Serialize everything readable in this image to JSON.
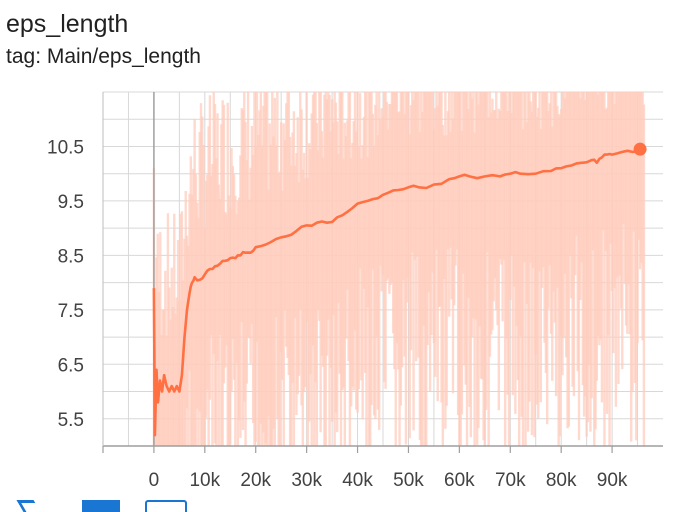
{
  "card": {
    "title": "eps_length",
    "tag": "tag: Main/eps_length"
  },
  "toolbar": {
    "icons": [
      "fit-domain-icon",
      "toggle-log-icon",
      "download-icon"
    ],
    "accent": "#1976d2"
  },
  "chart_data": {
    "type": "line",
    "title": "",
    "xlabel": "",
    "ylabel": "",
    "xlim": [
      -10000,
      100000
    ],
    "ylim": [
      5.0,
      11.5
    ],
    "x_ticks": [
      0,
      10000,
      20000,
      30000,
      40000,
      50000,
      60000,
      70000,
      80000,
      90000
    ],
    "x_tick_labels": [
      "0",
      "10k",
      "20k",
      "30k",
      "40k",
      "50k",
      "60k",
      "70k",
      "80k",
      "90k"
    ],
    "y_ticks": [
      5.5,
      6.5,
      7.5,
      8.5,
      9.5,
      10.5
    ],
    "y_tick_labels": [
      "5.5",
      "6.5",
      "7.5",
      "8.5",
      "9.5",
      "10.5"
    ],
    "grid": true,
    "series": [
      {
        "name": "",
        "color": "#ff7043",
        "raw_color": "#ffccbc",
        "x": [
          0,
          200,
          500,
          800,
          1200,
          1600,
          2000,
          2500,
          3000,
          3500,
          4000,
          4500,
          5000,
          5500,
          6000,
          6500,
          7000,
          7500,
          8000,
          9000,
          10000,
          11000,
          12000,
          13000,
          14000,
          15000,
          16000,
          17000,
          18000,
          19000,
          20000,
          22000,
          24000,
          26000,
          28000,
          30000,
          32000,
          34000,
          36000,
          38000,
          40000,
          42000,
          44000,
          46000,
          48000,
          50000,
          52000,
          55000,
          58000,
          60000,
          62000,
          65000,
          68000,
          70000,
          72000,
          75000,
          78000,
          80000,
          82000,
          84000,
          86000,
          87000,
          88000,
          89000,
          90000,
          92000,
          94000,
          95500
        ],
        "y": [
          7.9,
          5.2,
          6.4,
          5.8,
          6.2,
          6.0,
          6.3,
          6.1,
          6.0,
          6.1,
          6.0,
          6.1,
          6.0,
          6.3,
          7.0,
          7.5,
          7.8,
          8.0,
          8.1,
          8.05,
          8.15,
          8.25,
          8.3,
          8.35,
          8.4,
          8.45,
          8.45,
          8.5,
          8.55,
          8.55,
          8.65,
          8.7,
          8.8,
          8.85,
          8.95,
          9.05,
          9.1,
          9.1,
          9.2,
          9.3,
          9.45,
          9.5,
          9.55,
          9.65,
          9.7,
          9.75,
          9.75,
          9.8,
          9.9,
          9.95,
          9.95,
          9.95,
          9.95,
          10.0,
          10.0,
          10.0,
          10.05,
          10.1,
          10.15,
          10.2,
          10.25,
          10.2,
          10.3,
          10.35,
          10.35,
          10.4,
          10.4,
          10.45
        ]
      }
    ]
  }
}
